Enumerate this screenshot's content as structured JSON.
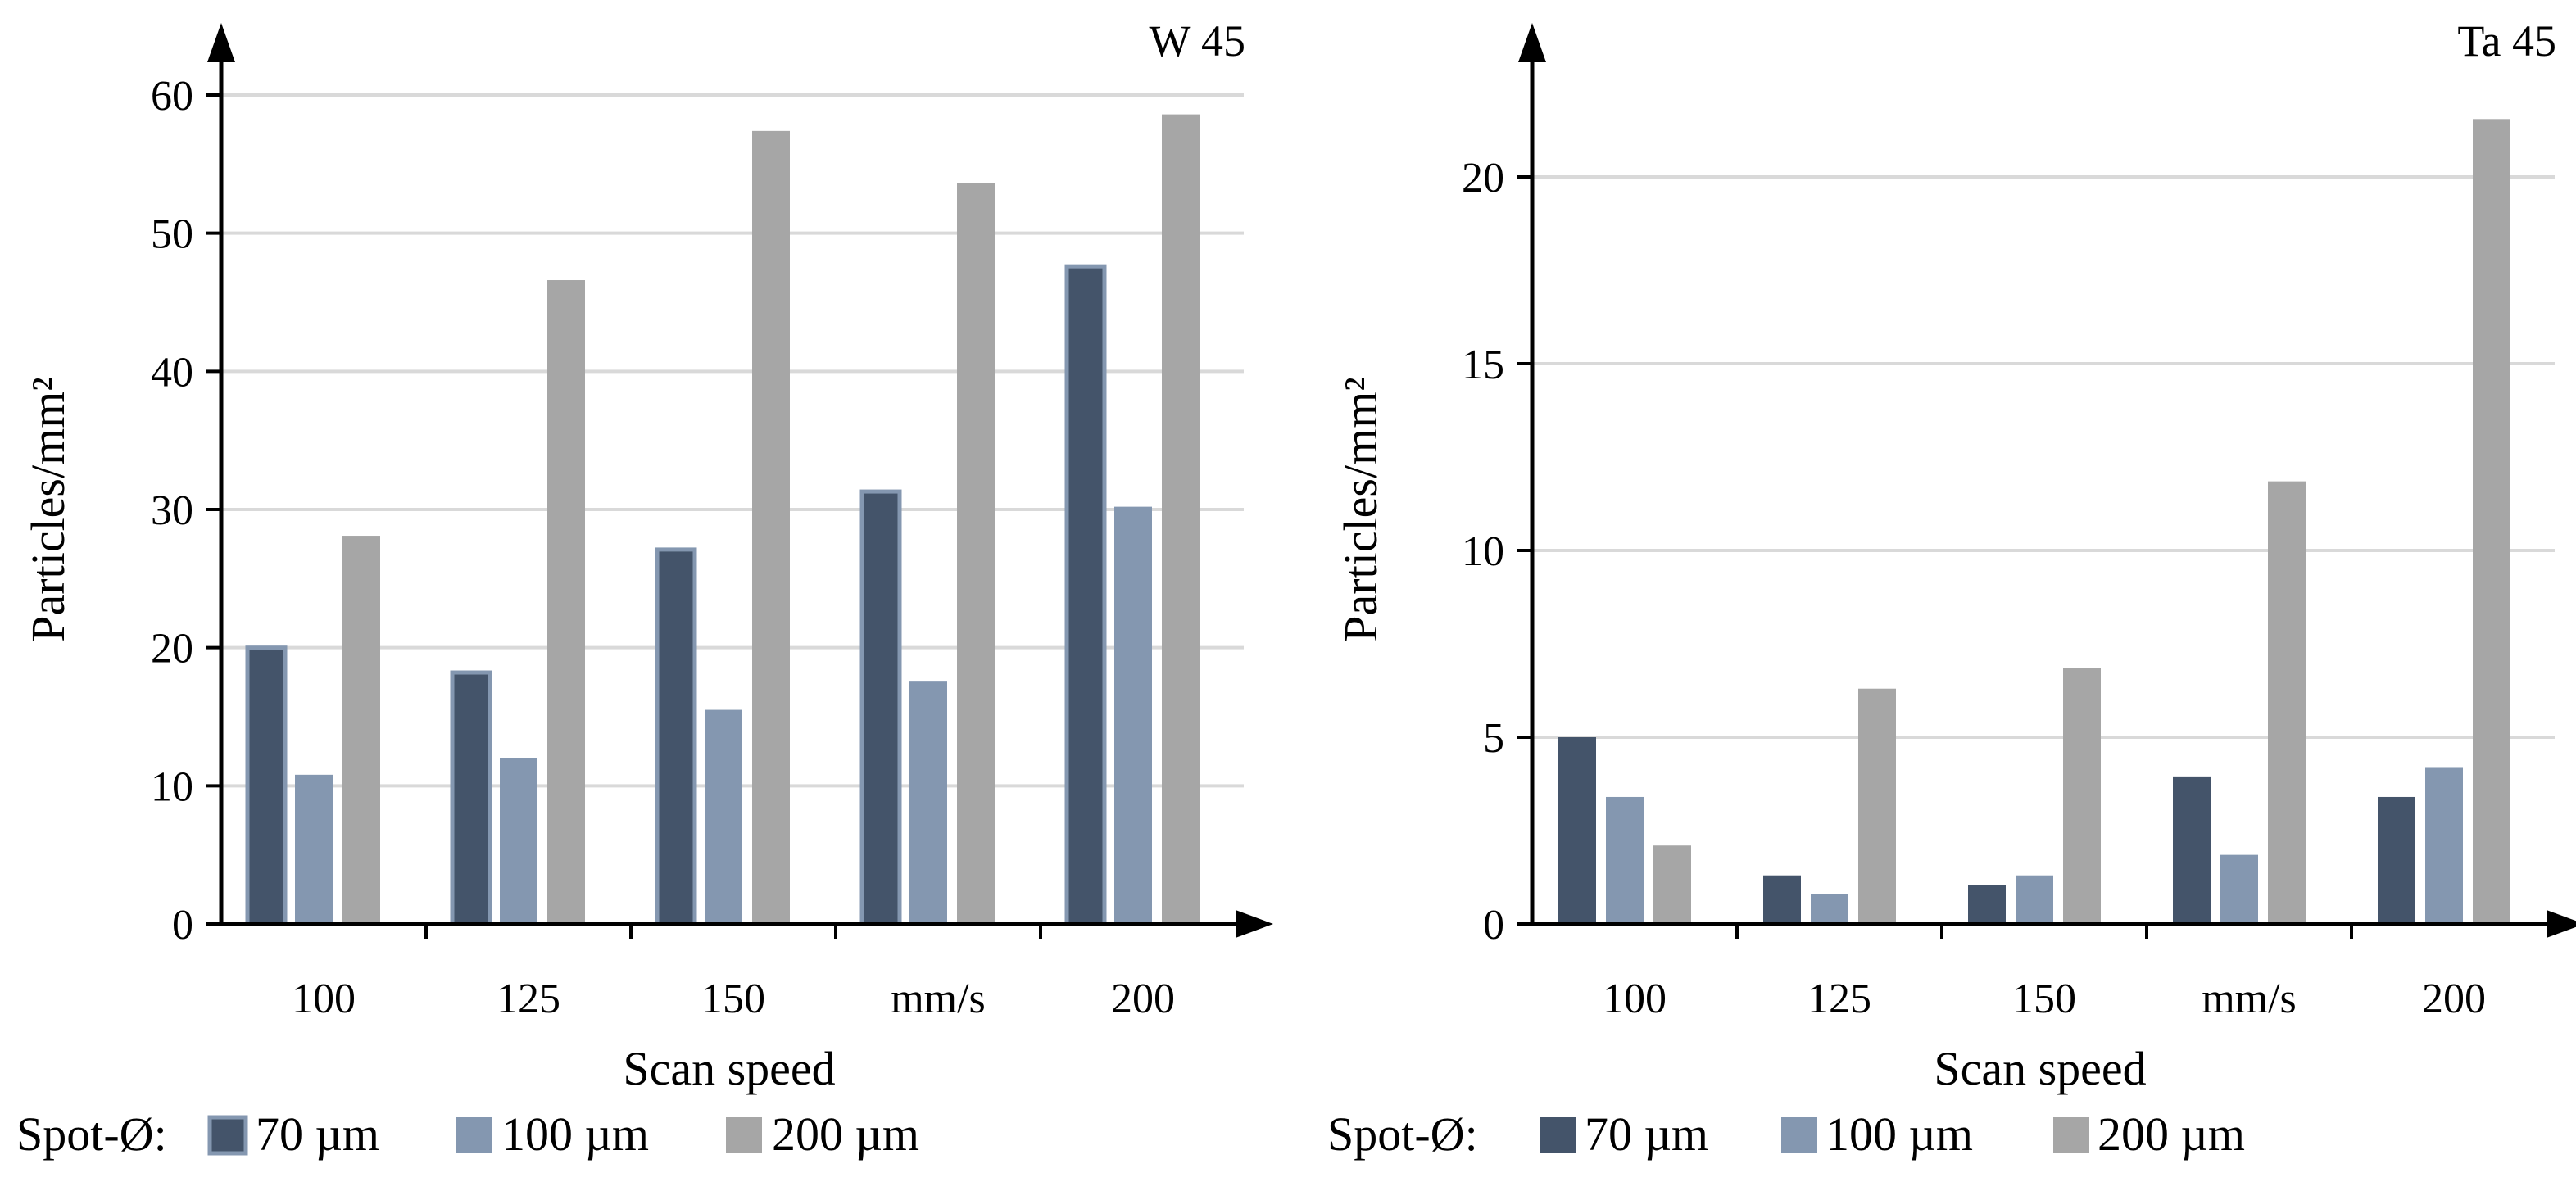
{
  "colors": {
    "s70": "#44546A",
    "s100": "#8497B0",
    "s200": "#A6A6A6",
    "grid": "#D9D9D9",
    "axis": "#000000"
  },
  "chart_data": [
    {
      "type": "bar",
      "title": "W 45",
      "xlabel": "Scan speed",
      "ylabel": "Particles/mm²",
      "categories": [
        "100",
        "125",
        "150",
        "mm/s",
        "200"
      ],
      "ylim": [
        0,
        60
      ],
      "yticks": [
        0,
        10,
        20,
        30,
        40,
        50,
        60
      ],
      "grid": true,
      "legend_title": "Spot-Ø:",
      "series": [
        {
          "name": "70 µm",
          "color": "#44546A",
          "values": [
            20,
            18.2,
            27.1,
            31.3,
            47.6
          ]
        },
        {
          "name": "100 µm",
          "color": "#8497B0",
          "values": [
            10.8,
            12,
            15.5,
            17.6,
            30.2
          ]
        },
        {
          "name": "200 µm",
          "color": "#A6A6A6",
          "values": [
            28.1,
            46.6,
            57.4,
            53.6,
            58.6
          ]
        }
      ]
    },
    {
      "type": "bar",
      "title": "Ta 45",
      "xlabel": "Scan speed",
      "ylabel": "Particles/mm²",
      "categories": [
        "100",
        "125",
        "150",
        "mm/s",
        "200"
      ],
      "ylim": [
        0,
        23
      ],
      "yticks": [
        0,
        5,
        10,
        15,
        20
      ],
      "grid": true,
      "legend_title": "Spot-Ø:",
      "series": [
        {
          "name": "70 µm",
          "color": "#44546A",
          "values": [
            5,
            1.3,
            1.05,
            3.95,
            3.4
          ]
        },
        {
          "name": "100 µm",
          "color": "#8497B0",
          "values": [
            3.4,
            0.8,
            1.3,
            1.85,
            4.2
          ]
        },
        {
          "name": "200 µm",
          "color": "#A6A6A6",
          "values": [
            2.1,
            6.3,
            6.85,
            11.85,
            21.55
          ]
        }
      ]
    }
  ]
}
